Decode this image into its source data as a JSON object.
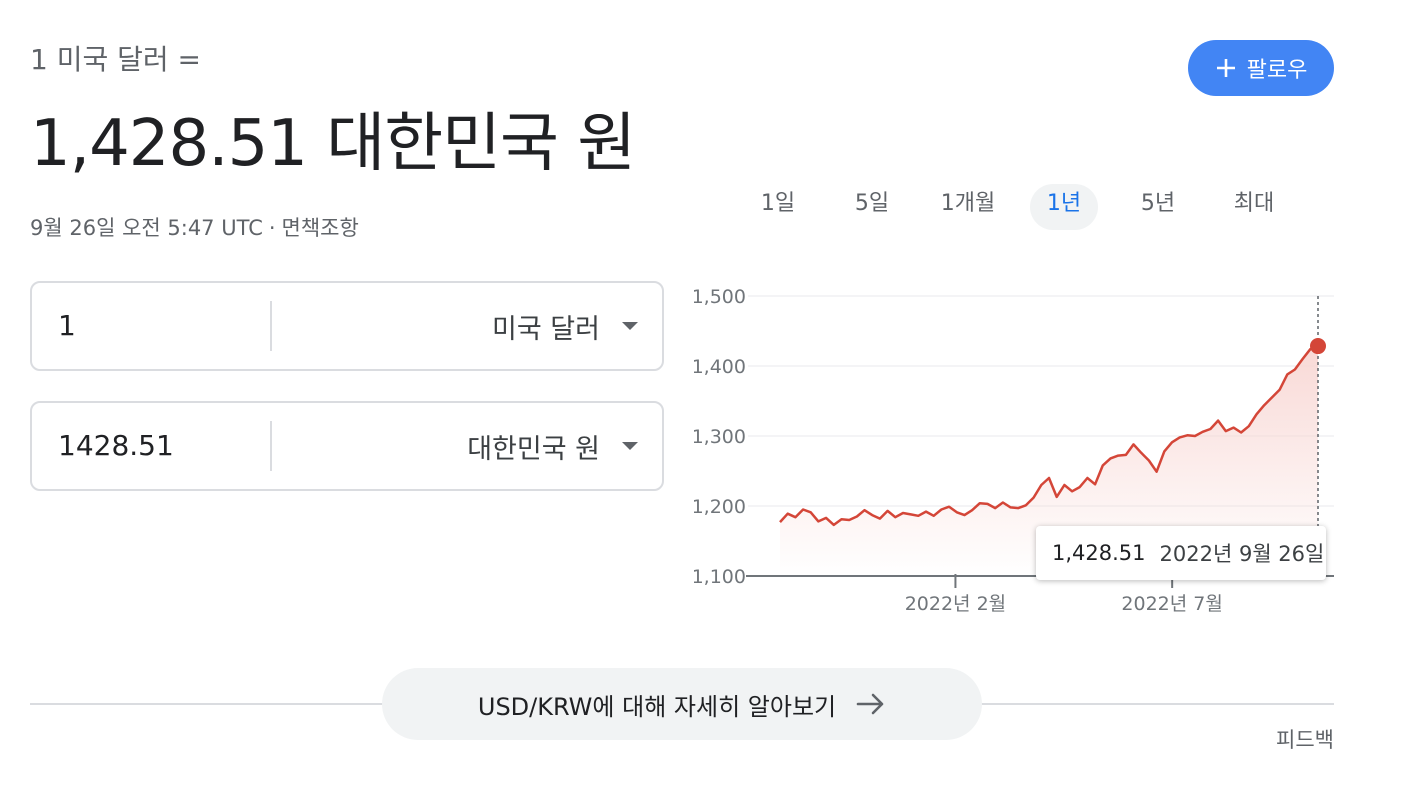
{
  "header": {
    "label": "1 미국 달러 =",
    "rate_text": "1,428.51 대한민국 원",
    "timestamp": "9월 26일 오전 5:47 UTC",
    "separator": "·",
    "disclaimer": "면책조항"
  },
  "follow_button": {
    "label": "팔로우",
    "icon": "plus-icon"
  },
  "converter": {
    "from": {
      "value": "1",
      "currency": "미국 달러"
    },
    "to": {
      "value": "1428.51",
      "currency": "대한민국 원"
    }
  },
  "range_tabs": [
    "1일",
    "5일",
    "1개월",
    "1년",
    "5년",
    "최대"
  ],
  "active_range": "1년",
  "chart_data": {
    "type": "area",
    "title": "",
    "xlabel": "",
    "ylabel": "",
    "ylim": [
      1100,
      1500
    ],
    "yticks": [
      1500,
      1400,
      1300,
      1200,
      1100
    ],
    "ytick_labels": [
      "1,500",
      "1,400",
      "1,300",
      "1,200",
      "1,100"
    ],
    "xtick_labels": [
      "2022년 2월",
      "2022년 7월"
    ],
    "xtick_positions": [
      0.324,
      0.711
    ],
    "grid": true,
    "color": "#d44638",
    "fill_color": "#f8d7d4",
    "series": [
      {
        "values": [
          1177,
          1189,
          1184,
          1195,
          1191,
          1178,
          1183,
          1173,
          1181,
          1180,
          1185,
          1194,
          1187,
          1182,
          1193,
          1184,
          1190,
          1188,
          1186,
          1192,
          1186,
          1195,
          1199,
          1191,
          1187,
          1194,
          1204,
          1203,
          1197,
          1205,
          1198,
          1197,
          1201,
          1212,
          1230,
          1240,
          1213,
          1230,
          1221,
          1227,
          1240,
          1231,
          1258,
          1268,
          1272,
          1273,
          1288,
          1276,
          1265,
          1249,
          1278,
          1291,
          1298,
          1301,
          1300,
          1306,
          1310,
          1322,
          1307,
          1312,
          1305,
          1314,
          1331,
          1344,
          1355,
          1366,
          1388,
          1395,
          1410,
          1424,
          1428.51
        ]
      }
    ],
    "last_value": "1,428.51",
    "last_date": "2022년 9월 26일"
  },
  "learn_more": {
    "label": "USD/KRW에 대해 자세히 알아보기",
    "icon": "arrow-right-icon"
  },
  "feedback": "피드백"
}
